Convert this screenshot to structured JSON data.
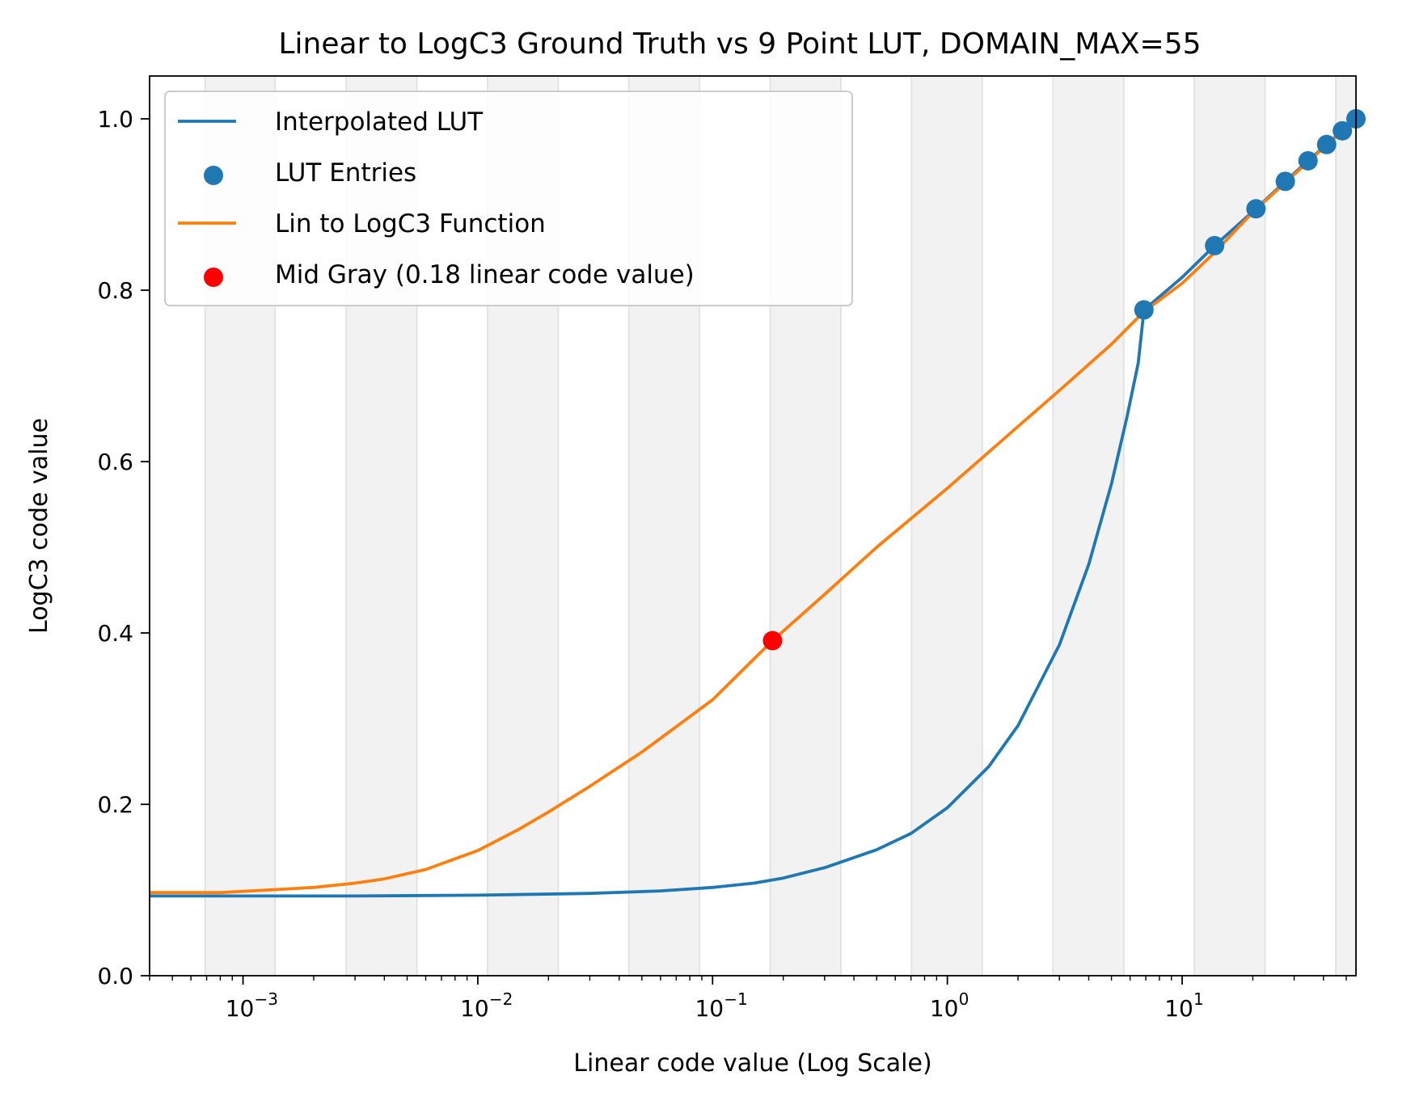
{
  "chart_data": {
    "type": "line",
    "title": "Linear to LogC3 Ground Truth vs 9 Point LUT, DOMAIN_MAX=55",
    "xlabel": "Linear code value (Log Scale)",
    "ylabel": "LogC3 code value",
    "xscale": "log",
    "xlim": [
      0.0004,
      55
    ],
    "ylim": [
      0.0,
      1.05
    ],
    "x_ticks": [
      {
        "base": "10",
        "exp": "−3",
        "value": 0.001
      },
      {
        "base": "10",
        "exp": "−2",
        "value": 0.01
      },
      {
        "base": "10",
        "exp": "−1",
        "value": 0.1
      },
      {
        "base": "10",
        "exp": "0",
        "value": 1
      },
      {
        "base": "10",
        "exp": "1",
        "value": 10
      }
    ],
    "y_ticks": [
      "0.0",
      "0.2",
      "0.4",
      "0.6",
      "0.8",
      "1.0"
    ],
    "background_bands": [
      [
        0.00069,
        0.00137
      ],
      [
        0.00275,
        0.0055
      ],
      [
        0.011,
        0.022
      ],
      [
        0.044,
        0.088
      ],
      [
        0.176,
        0.352
      ],
      [
        0.704,
        1.408
      ],
      [
        2.82,
        5.64
      ],
      [
        11.27,
        22.55
      ],
      [
        45.1,
        55
      ]
    ],
    "grid": false,
    "legend_position": "upper-left",
    "legend": [
      {
        "label": "Interpolated LUT",
        "kind": "line",
        "color": "#1f77b4"
      },
      {
        "label": "LUT Entries",
        "kind": "marker",
        "color": "#1f77b4"
      },
      {
        "label": "Lin to LogC3 Function",
        "kind": "line",
        "color": "#ff7f0e"
      },
      {
        "label": "Mid Gray (0.18 linear code value)",
        "kind": "marker",
        "color": "#ff0000"
      }
    ],
    "series": [
      {
        "name": "Interpolated LUT",
        "kind": "line",
        "color": "#1f77b4",
        "x": [
          0.0004,
          0.001,
          0.003,
          0.01,
          0.03,
          0.06,
          0.1,
          0.15,
          0.2,
          0.3,
          0.5,
          0.7,
          1.0,
          1.5,
          2.0,
          3.0,
          4.0,
          5.0,
          5.8,
          6.5,
          6.875,
          10,
          13.75,
          20.625,
          27.5,
          34.375,
          41.25,
          48.125,
          55
        ],
        "y": [
          0.093,
          0.093,
          0.093,
          0.094,
          0.096,
          0.099,
          0.103,
          0.108,
          0.114,
          0.126,
          0.147,
          0.166,
          0.196,
          0.244,
          0.292,
          0.386,
          0.48,
          0.574,
          0.65,
          0.715,
          0.777,
          0.815,
          0.852,
          0.895,
          0.927,
          0.951,
          0.97,
          0.986,
          1.0
        ]
      },
      {
        "name": "LUT Entries",
        "kind": "scatter",
        "color": "#1f77b4",
        "x": [
          6.875,
          13.75,
          20.625,
          27.5,
          34.375,
          41.25,
          48.125,
          55
        ],
        "y": [
          0.777,
          0.852,
          0.895,
          0.927,
          0.951,
          0.97,
          0.986,
          1.0
        ]
      },
      {
        "name": "Lin to LogC3 Function",
        "kind": "line",
        "color": "#ff7f0e",
        "x": [
          0.0004,
          0.0008,
          0.0015,
          0.002,
          0.003,
          0.004,
          0.006,
          0.01,
          0.015,
          0.02,
          0.03,
          0.05,
          0.1,
          0.18,
          0.3,
          0.5,
          1.0,
          2.0,
          3.0,
          5.0,
          6.875,
          10,
          13.75,
          20,
          30,
          40,
          55
        ],
        "y": [
          0.097,
          0.097,
          0.101,
          0.103,
          0.108,
          0.113,
          0.124,
          0.146,
          0.171,
          0.191,
          0.221,
          0.261,
          0.322,
          0.391,
          0.445,
          0.5,
          0.569,
          0.641,
          0.683,
          0.737,
          0.775,
          0.808,
          0.844,
          0.891,
          0.935,
          0.966,
          1.0
        ]
      },
      {
        "name": "Mid Gray (0.18 linear code value)",
        "kind": "scatter",
        "color": "#ff0000",
        "x": [
          0.18
        ],
        "y": [
          0.391
        ]
      }
    ]
  }
}
